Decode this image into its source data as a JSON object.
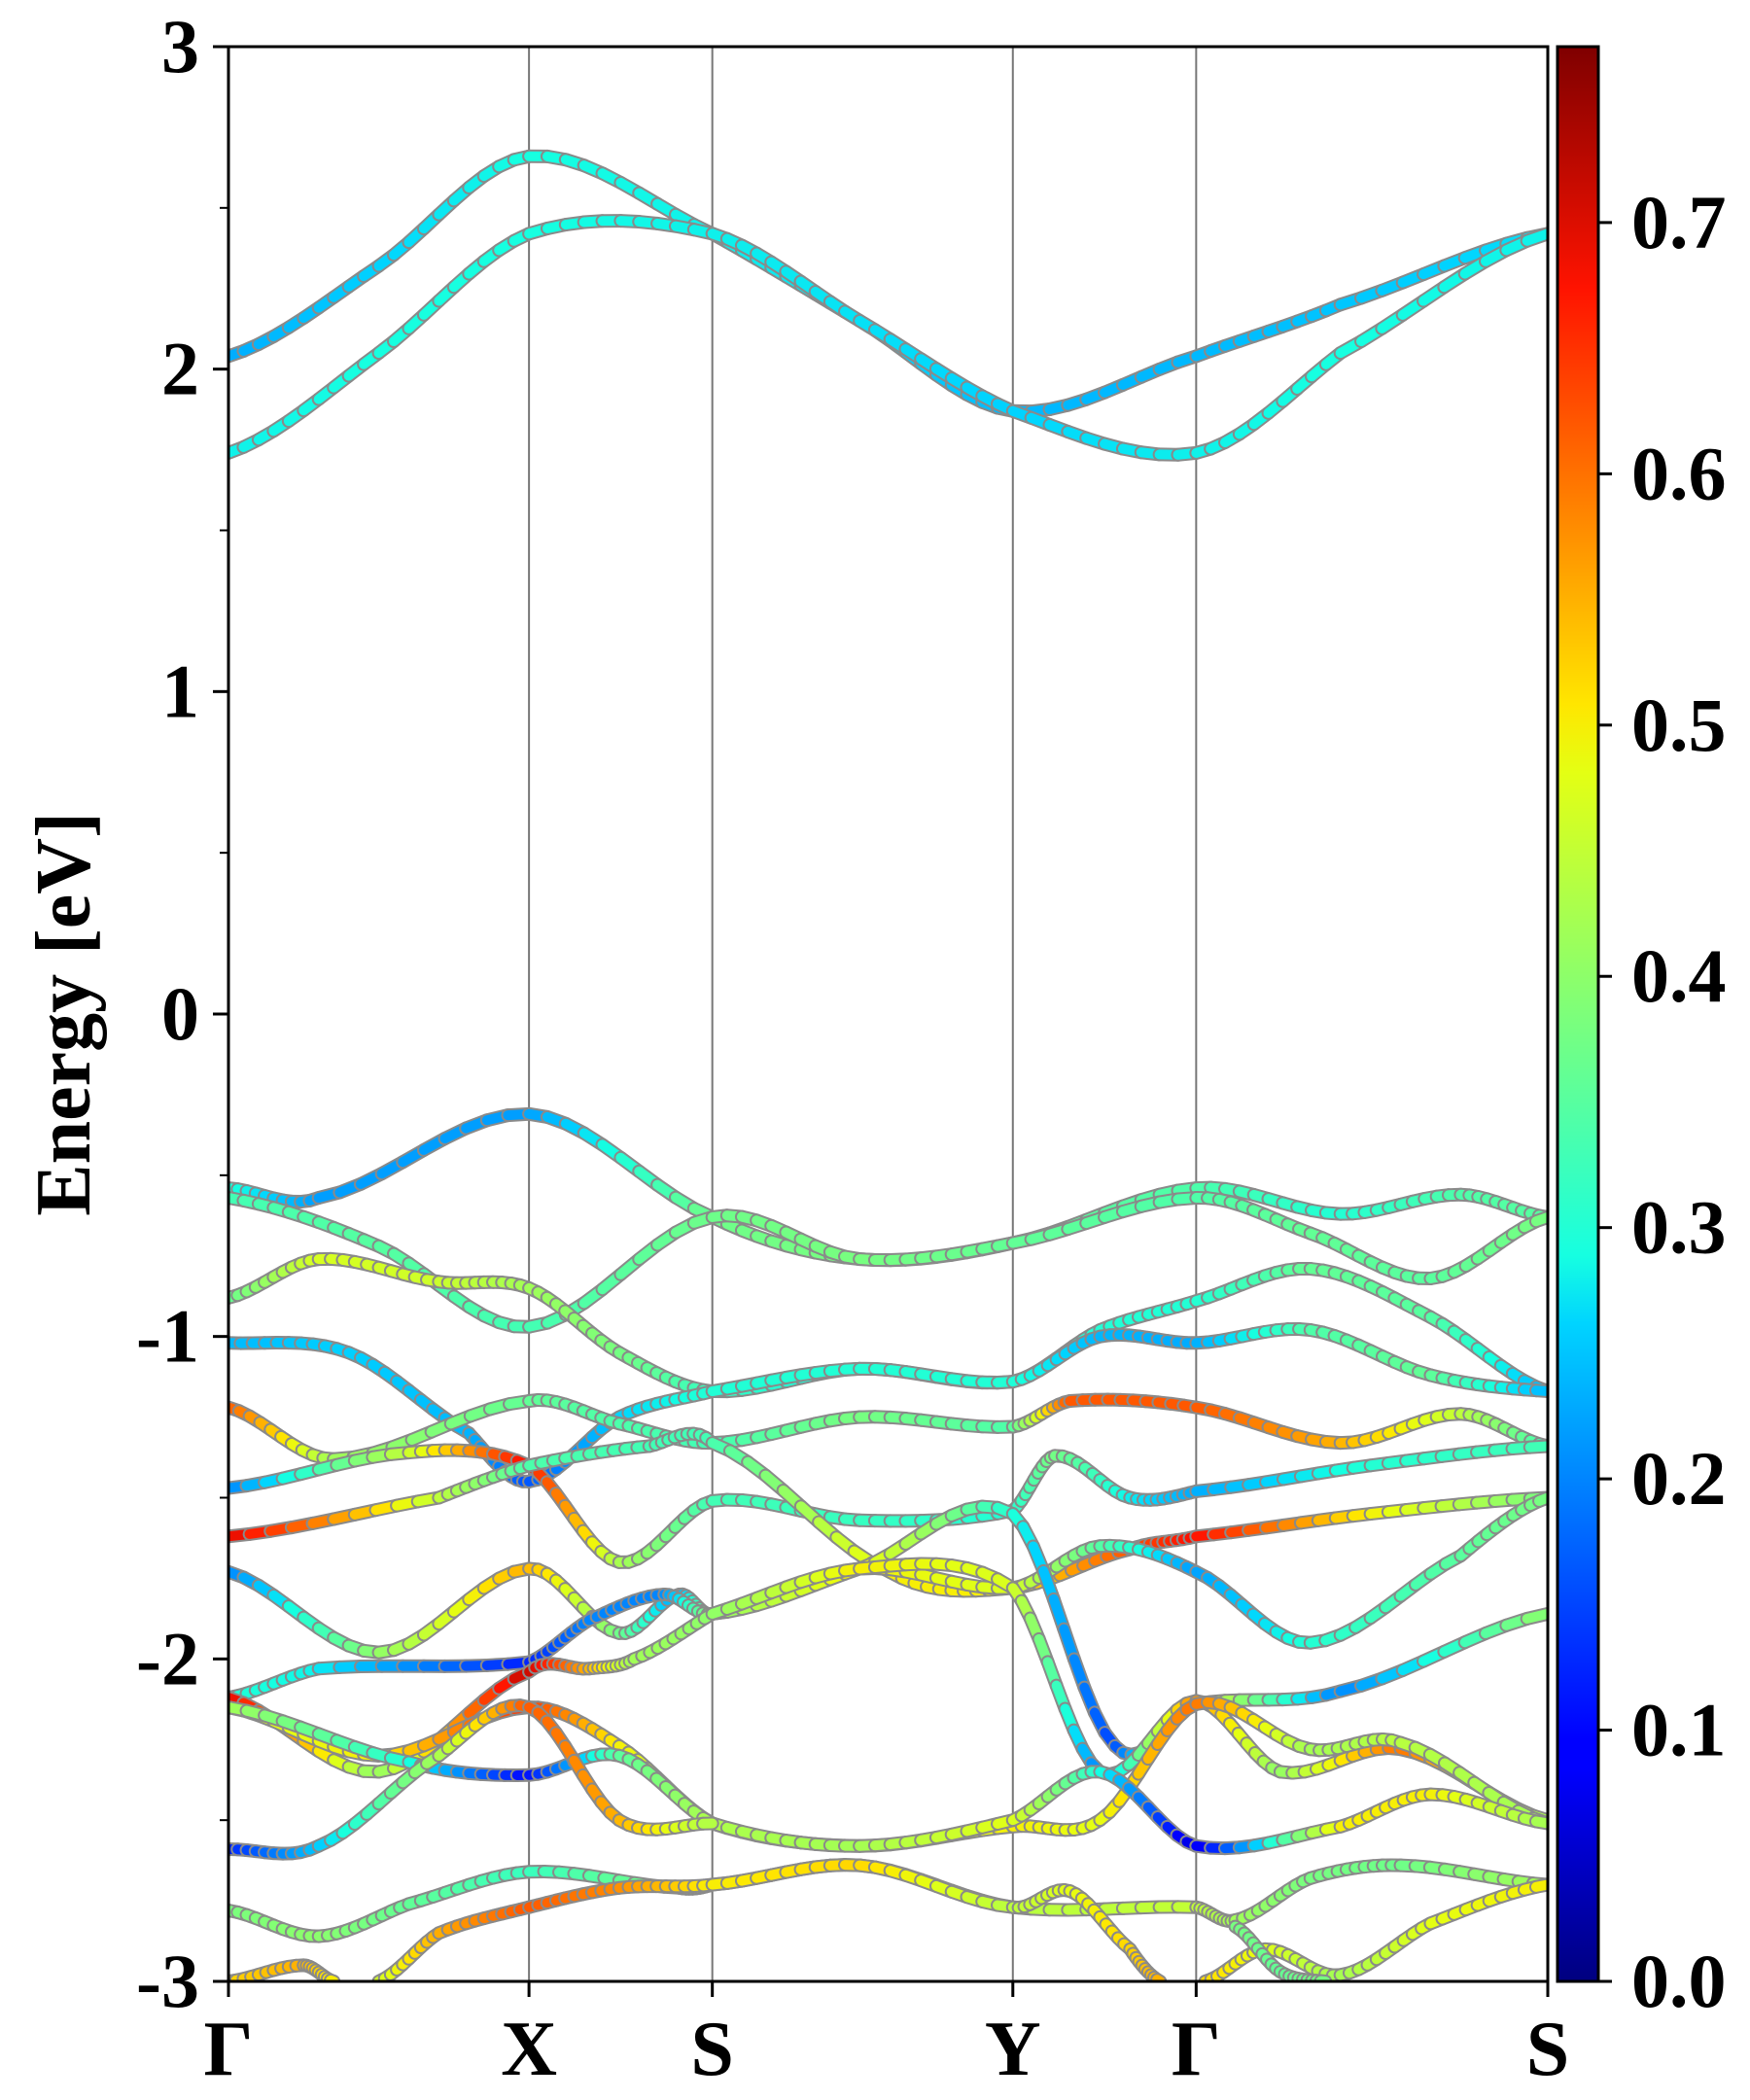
{
  "chart_data": {
    "type": "line",
    "title": "",
    "xlabel": "",
    "ylabel": "Energy [eV]",
    "ylim": [
      -3,
      3
    ],
    "yticks": [
      "3",
      "2",
      "1",
      "0",
      "-1",
      "-2",
      "-3"
    ],
    "grid": false,
    "high_symmetry_points": [
      {
        "label": "Γ",
        "k": 0.0
      },
      {
        "label": "X",
        "k": 1.0
      },
      {
        "label": "S",
        "k": 1.61
      },
      {
        "label": "Y",
        "k": 2.61
      },
      {
        "label": "Γ",
        "k": 3.22
      },
      {
        "label": "S",
        "k": 4.39
      }
    ],
    "colorbar": {
      "colormap": "jet",
      "range": [
        0.0,
        0.77
      ],
      "ticks": [
        "0.0",
        "0.1",
        "0.2",
        "0.3",
        "0.4",
        "0.5",
        "0.6",
        "0.7"
      ]
    },
    "series": [
      {
        "points": [
          [
            0,
            2.04
          ],
          [
            0.5,
            2.32
          ],
          [
            1.0,
            2.66
          ],
          [
            1.61,
            2.42
          ],
          [
            2.1,
            2.15
          ],
          [
            2.61,
            1.87
          ],
          [
            3.22,
            2.04
          ],
          [
            3.7,
            2.2
          ],
          [
            4.39,
            2.42
          ]
        ],
        "weights": [
          0.23,
          0.26,
          0.29,
          0.28,
          0.27,
          0.24,
          0.24,
          0.25,
          0.27
        ]
      },
      {
        "points": [
          [
            0,
            1.74
          ],
          [
            0.5,
            2.05
          ],
          [
            1.0,
            2.42
          ],
          [
            1.61,
            2.42
          ],
          [
            2.1,
            2.15
          ],
          [
            2.61,
            1.87
          ],
          [
            3.22,
            1.74
          ],
          [
            3.7,
            2.05
          ],
          [
            4.39,
            2.42
          ]
        ],
        "weights": [
          0.28,
          0.29,
          0.29,
          0.28,
          0.27,
          0.26,
          0.28,
          0.29,
          0.28
        ]
      },
      {
        "points": [
          [
            0,
            -0.54
          ],
          [
            0.3,
            -0.57
          ],
          [
            1.0,
            -0.31
          ],
          [
            1.61,
            -0.63
          ],
          [
            2.1,
            -0.76
          ],
          [
            2.61,
            -0.71
          ],
          [
            3.22,
            -0.54
          ],
          [
            3.7,
            -0.62
          ],
          [
            4.1,
            -0.56
          ],
          [
            4.39,
            -0.63
          ]
        ],
        "weights": [
          0.3,
          0.22,
          0.22,
          0.37,
          0.38,
          0.36,
          0.34,
          0.3,
          0.34,
          0.35
        ]
      },
      {
        "points": [
          [
            0,
            -0.57
          ],
          [
            0.5,
            -0.72
          ],
          [
            1.0,
            -0.97
          ],
          [
            1.61,
            -0.63
          ],
          [
            2.1,
            -0.76
          ],
          [
            2.61,
            -0.71
          ],
          [
            3.22,
            -0.57
          ],
          [
            3.6,
            -0.68
          ],
          [
            4.0,
            -0.82
          ],
          [
            4.39,
            -0.63
          ]
        ],
        "weights": [
          0.33,
          0.35,
          0.33,
          0.37,
          0.38,
          0.36,
          0.34,
          0.36,
          0.35,
          0.38
        ]
      },
      {
        "points": [
          [
            0,
            -0.88
          ],
          [
            0.3,
            -0.76
          ],
          [
            0.7,
            -0.83
          ],
          [
            1.0,
            -0.85
          ],
          [
            1.3,
            -1.05
          ],
          [
            1.61,
            -1.17
          ],
          [
            2.1,
            -1.1
          ],
          [
            2.61,
            -1.14
          ],
          [
            2.9,
            -0.98
          ],
          [
            3.22,
            -0.89
          ],
          [
            3.6,
            -0.79
          ],
          [
            4.0,
            -0.94
          ],
          [
            4.39,
            -1.17
          ]
        ],
        "weights": [
          0.36,
          0.47,
          0.46,
          0.42,
          0.38,
          0.32,
          0.28,
          0.3,
          0.3,
          0.3,
          0.36,
          0.35,
          0.24
        ]
      },
      {
        "points": [
          [
            0,
            -1.02
          ],
          [
            0.4,
            -1.05
          ],
          [
            0.8,
            -1.3
          ],
          [
            1.0,
            -1.45
          ],
          [
            1.3,
            -1.25
          ],
          [
            1.61,
            -1.17
          ],
          [
            2.1,
            -1.1
          ],
          [
            2.61,
            -1.14
          ],
          [
            2.9,
            -1.0
          ],
          [
            3.22,
            -1.02
          ],
          [
            3.6,
            -0.98
          ],
          [
            4.0,
            -1.12
          ],
          [
            4.39,
            -1.17
          ]
        ],
        "weights": [
          0.24,
          0.26,
          0.24,
          0.16,
          0.26,
          0.3,
          0.3,
          0.3,
          0.24,
          0.23,
          0.34,
          0.36,
          0.24
        ]
      },
      {
        "points": [
          [
            0,
            -1.22
          ],
          [
            0.35,
            -1.38
          ],
          [
            1.0,
            -1.2
          ],
          [
            1.3,
            -1.27
          ],
          [
            1.61,
            -1.33
          ],
          [
            2.1,
            -1.25
          ],
          [
            2.61,
            -1.28
          ],
          [
            2.8,
            -1.2
          ],
          [
            3.22,
            -1.22
          ],
          [
            3.7,
            -1.33
          ],
          [
            4.1,
            -1.24
          ],
          [
            4.39,
            -1.34
          ]
        ],
        "weights": [
          0.62,
          0.42,
          0.36,
          0.34,
          0.33,
          0.38,
          0.34,
          0.62,
          0.62,
          0.55,
          0.45,
          0.33
        ]
      },
      {
        "points": [
          [
            0,
            -1.47
          ],
          [
            0.6,
            -1.36
          ],
          [
            1.0,
            -1.4
          ],
          [
            1.3,
            -1.7
          ],
          [
            1.61,
            -1.51
          ],
          [
            2.1,
            -1.57
          ],
          [
            2.61,
            -1.54
          ],
          [
            2.75,
            -1.37
          ],
          [
            3.0,
            -1.5
          ],
          [
            3.22,
            -1.48
          ],
          [
            3.8,
            -1.4
          ],
          [
            4.39,
            -1.34
          ]
        ],
        "weights": [
          0.2,
          0.45,
          0.68,
          0.43,
          0.33,
          0.32,
          0.3,
          0.38,
          0.28,
          0.23,
          0.3,
          0.33
        ]
      },
      {
        "points": [
          [
            0,
            -1.62
          ],
          [
            0.7,
            -1.5
          ],
          [
            1.0,
            -1.4
          ],
          [
            1.4,
            -1.34
          ],
          [
            1.61,
            -1.33
          ],
          [
            2.2,
            -1.73
          ],
          [
            2.61,
            -1.78
          ],
          [
            3.0,
            -1.66
          ],
          [
            3.22,
            -1.62
          ],
          [
            3.8,
            -1.55
          ],
          [
            4.39,
            -1.5
          ]
        ],
        "weights": [
          0.7,
          0.45,
          0.34,
          0.33,
          0.33,
          0.5,
          0.5,
          0.62,
          0.68,
          0.5,
          0.38
        ]
      },
      {
        "points": [
          [
            0,
            -1.73
          ],
          [
            0.5,
            -1.98
          ],
          [
            1.0,
            -1.72
          ],
          [
            1.3,
            -1.92
          ],
          [
            1.5,
            -1.8
          ],
          [
            1.61,
            -1.86
          ],
          [
            2.1,
            -1.72
          ],
          [
            2.61,
            -1.78
          ],
          [
            2.9,
            -1.65
          ],
          [
            3.22,
            -1.73
          ],
          [
            3.6,
            -1.95
          ],
          [
            4.1,
            -1.68
          ],
          [
            4.39,
            -1.5
          ]
        ],
        "weights": [
          0.2,
          0.4,
          0.55,
          0.38,
          0.22,
          0.4,
          0.5,
          0.47,
          0.35,
          0.22,
          0.3,
          0.35,
          0.38
        ]
      },
      {
        "points": [
          [
            0,
            -2.12
          ],
          [
            0.3,
            -2.03
          ],
          [
            1.0,
            -2.01
          ],
          [
            1.2,
            -1.88
          ],
          [
            1.45,
            -1.8
          ],
          [
            1.61,
            -1.86
          ],
          [
            2.1,
            -1.72
          ],
          [
            2.61,
            -1.55
          ],
          [
            2.95,
            -2.27
          ],
          [
            3.22,
            -2.14
          ],
          [
            3.7,
            -2.1
          ],
          [
            4.39,
            -1.86
          ]
        ],
        "weights": [
          0.3,
          0.28,
          0.12,
          0.2,
          0.2,
          0.4,
          0.5,
          0.3,
          0.15,
          0.5,
          0.2,
          0.4
        ]
      },
      {
        "points": [
          [
            0,
            -2.12
          ],
          [
            0.5,
            -2.35
          ],
          [
            1.0,
            -2.04
          ],
          [
            1.2,
            -2.03
          ],
          [
            1.35,
            -2.0
          ],
          [
            1.61,
            -1.86
          ],
          [
            2.1,
            -1.72
          ],
          [
            2.61,
            -1.78
          ],
          [
            2.9,
            -2.35
          ],
          [
            3.22,
            -2.13
          ],
          [
            3.5,
            -2.35
          ],
          [
            3.9,
            -2.28
          ],
          [
            4.39,
            -2.5
          ]
        ],
        "weights": [
          0.7,
          0.4,
          0.72,
          0.55,
          0.42,
          0.4,
          0.5,
          0.47,
          0.2,
          0.58,
          0.4,
          0.6,
          0.42
        ]
      },
      {
        "points": [
          [
            0,
            -2.15
          ],
          [
            0.5,
            -2.3
          ],
          [
            1.0,
            -2.15
          ],
          [
            1.3,
            -2.27
          ],
          [
            1.61,
            -2.51
          ],
          [
            2.1,
            -2.58
          ],
          [
            2.61,
            -2.52
          ],
          [
            2.9,
            -2.5
          ],
          [
            3.22,
            -2.14
          ],
          [
            3.6,
            -2.28
          ],
          [
            3.9,
            -2.26
          ],
          [
            4.39,
            -2.51
          ]
        ],
        "weights": [
          0.47,
          0.5,
          0.65,
          0.5,
          0.43,
          0.42,
          0.5,
          0.48,
          0.6,
          0.42,
          0.44,
          0.42
        ]
      },
      {
        "points": [
          [
            0,
            -2.15
          ],
          [
            0.6,
            -2.32
          ],
          [
            1.0,
            -2.36
          ],
          [
            1.3,
            -2.3
          ],
          [
            1.61,
            -2.51
          ],
          [
            2.1,
            -2.58
          ],
          [
            2.61,
            -2.5
          ],
          [
            2.9,
            -2.35
          ],
          [
            3.22,
            -2.58
          ],
          [
            3.7,
            -2.52
          ],
          [
            4.0,
            -2.42
          ],
          [
            4.39,
            -2.51
          ]
        ],
        "weights": [
          0.42,
          0.3,
          0.1,
          0.35,
          0.43,
          0.42,
          0.48,
          0.3,
          0.06,
          0.5,
          0.5,
          0.42
        ]
      },
      {
        "points": [
          [
            0,
            -2.59
          ],
          [
            0.3,
            -2.58
          ],
          [
            0.7,
            -2.3
          ],
          [
            1.0,
            -2.15
          ],
          [
            1.3,
            -2.5
          ],
          [
            1.61,
            -2.51
          ]
        ],
        "weights": [
          0.12,
          0.25,
          0.42,
          0.62,
          0.55,
          0.43
        ]
      },
      {
        "points": [
          [
            0,
            -2.78
          ],
          [
            0.3,
            -2.86
          ],
          [
            0.6,
            -2.76
          ],
          [
            1.0,
            -2.66
          ],
          [
            1.5,
            -2.71
          ],
          [
            1.61,
            -2.7
          ],
          [
            2.1,
            -2.64
          ],
          [
            2.61,
            -2.77
          ],
          [
            3.22,
            -2.77
          ],
          [
            3.35,
            -2.81
          ],
          [
            3.6,
            -2.68
          ],
          [
            3.9,
            -2.64
          ],
          [
            4.39,
            -2.7
          ]
        ],
        "weights": [
          0.38,
          0.4,
          0.36,
          0.32,
          0.38,
          0.48,
          0.52,
          0.44,
          0.45,
          0.42,
          0.38,
          0.37,
          0.42
        ]
      },
      {
        "points": [
          [
            0.5,
            -3.0
          ],
          [
            0.7,
            -2.85
          ],
          [
            1.0,
            -2.77
          ],
          [
            1.3,
            -2.71
          ],
          [
            1.61,
            -2.7
          ],
          [
            2.1,
            -2.64
          ],
          [
            2.61,
            -2.77
          ],
          [
            2.8,
            -2.72
          ],
          [
            3.0,
            -2.9
          ],
          [
            3.1,
            -3.0
          ]
        ],
        "weights": [
          0.46,
          0.55,
          0.62,
          0.58,
          0.5,
          0.52,
          0.44,
          0.48,
          0.52,
          0.55
        ]
      },
      {
        "points": [
          [
            0,
            -3.0
          ],
          [
            0.25,
            -2.95
          ],
          [
            0.35,
            -3.0
          ]
        ],
        "weights": [
          0.52,
          0.55,
          0.5
        ]
      },
      {
        "points": [
          [
            3.25,
            -3.0
          ],
          [
            3.45,
            -2.9
          ],
          [
            3.7,
            -2.98
          ],
          [
            4.0,
            -2.82
          ],
          [
            4.39,
            -2.7
          ]
        ],
        "weights": [
          0.52,
          0.48,
          0.42,
          0.48,
          0.5
        ]
      },
      {
        "points": [
          [
            3.35,
            -2.83
          ],
          [
            3.5,
            -2.97
          ],
          [
            3.65,
            -3.0
          ]
        ],
        "weights": [
          0.38,
          0.36,
          0.38
        ]
      }
    ]
  }
}
